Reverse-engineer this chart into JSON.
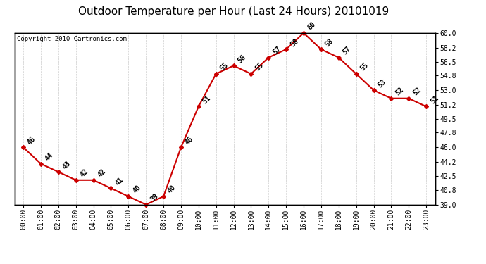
{
  "title": "Outdoor Temperature per Hour (Last 24 Hours) 20101019",
  "copyright_text": "Copyright 2010 Cartronics.com",
  "hours": [
    "00:00",
    "01:00",
    "02:00",
    "03:00",
    "04:00",
    "05:00",
    "06:00",
    "07:00",
    "08:00",
    "09:00",
    "10:00",
    "11:00",
    "12:00",
    "13:00",
    "14:00",
    "15:00",
    "16:00",
    "17:00",
    "18:00",
    "19:00",
    "20:00",
    "21:00",
    "22:00",
    "23:00"
  ],
  "temps": [
    46,
    44,
    43,
    42,
    42,
    41,
    40,
    39,
    40,
    46,
    51,
    55,
    56,
    55,
    57,
    58,
    60,
    58,
    57,
    55,
    53,
    52,
    52,
    51
  ],
  "ylim": [
    39.0,
    60.0
  ],
  "yticks": [
    39.0,
    40.8,
    42.5,
    44.2,
    46.0,
    47.8,
    49.5,
    51.2,
    53.0,
    54.8,
    56.5,
    58.2,
    60.0
  ],
  "line_color": "#cc0000",
  "marker": "D",
  "marker_size": 3,
  "grid_color": "#cccccc",
  "bg_color": "#ffffff",
  "title_fontsize": 11,
  "label_fontsize": 7,
  "annot_fontsize": 7,
  "copyright_fontsize": 6.5
}
